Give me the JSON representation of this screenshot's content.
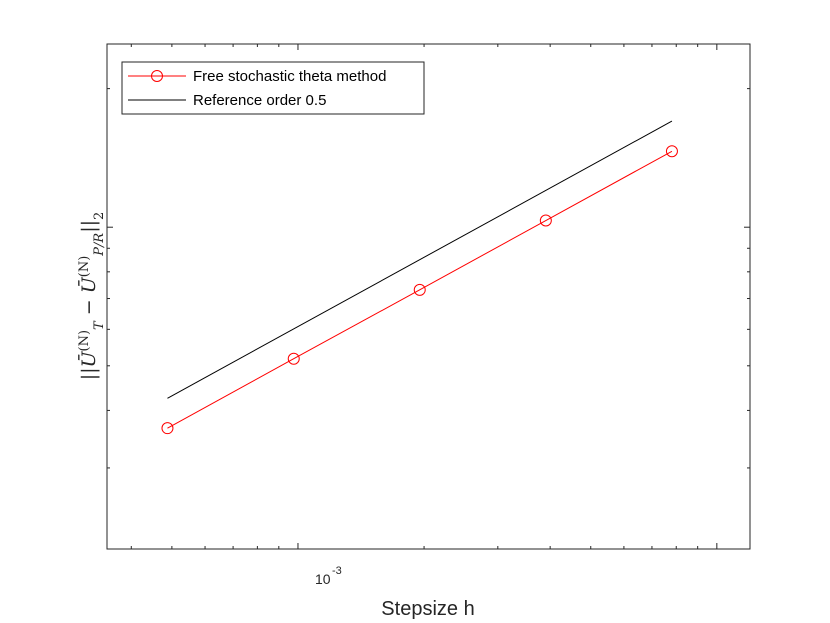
{
  "chart_data": {
    "type": "line",
    "xscale": "log",
    "yscale": "log",
    "xlim": [
      0.00035,
      0.012
    ],
    "ylim": [
      0.2,
      2.5
    ],
    "xlabel": "Stepsize h",
    "ylabel": {
      "lead": "||",
      "u1": "Ū",
      "sup1": "(N)",
      "sub1": "T",
      "minus": " − ",
      "u2": "Ū",
      "sup2": "(N)",
      "sub2": "P/R",
      "tail": "||",
      "norm_sub": "2"
    },
    "x_tick_labels": [
      {
        "value": 0.001,
        "base": "10",
        "exp": "-3"
      }
    ],
    "series": [
      {
        "name": "Free stochastic theta method",
        "color": "#ff0000",
        "marker": "circle",
        "x": [
          0.000488,
          0.000977,
          0.001953,
          0.003906,
          0.007813
        ],
        "y": [
          0.366,
          0.518,
          0.731,
          1.034,
          1.462
        ]
      },
      {
        "name": "Reference order 0.5",
        "color": "#000000",
        "marker": "none",
        "x": [
          0.000488,
          0.007813
        ],
        "y": [
          0.425,
          1.7
        ]
      }
    ],
    "legend": {
      "position": "top-left"
    },
    "grid": false
  }
}
